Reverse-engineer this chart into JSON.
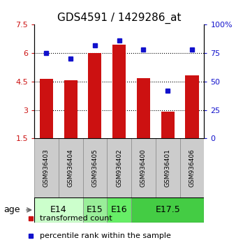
{
  "title": "GDS4591 / 1429286_at",
  "samples": [
    "GSM936403",
    "GSM936404",
    "GSM936405",
    "GSM936402",
    "GSM936400",
    "GSM936401",
    "GSM936406"
  ],
  "bar_values": [
    4.65,
    4.55,
    6.02,
    6.45,
    4.68,
    2.92,
    4.83
  ],
  "dot_values": [
    75,
    70,
    82,
    86,
    78,
    42,
    78
  ],
  "age_groups": [
    {
      "label": "E14",
      "start": 0,
      "end": 2,
      "color": "#ccffcc"
    },
    {
      "label": "E15",
      "start": 2,
      "end": 3,
      "color": "#99ee99"
    },
    {
      "label": "E16",
      "start": 3,
      "end": 4,
      "color": "#66ee66"
    },
    {
      "label": "E17.5",
      "start": 4,
      "end": 7,
      "color": "#44cc44"
    }
  ],
  "bar_color": "#cc1111",
  "dot_color": "#1111cc",
  "ylim_left": [
    1.5,
    7.5
  ],
  "ylim_right": [
    0,
    100
  ],
  "yticks_left": [
    1.5,
    3.0,
    4.5,
    6.0,
    7.5
  ],
  "yticks_right": [
    0,
    25,
    50,
    75,
    100
  ],
  "ytick_labels_left": [
    "1.5",
    "3",
    "4.5",
    "6",
    "7.5"
  ],
  "ytick_labels_right": [
    "0",
    "25",
    "50",
    "75",
    "100%"
  ],
  "bar_width": 0.55,
  "title_fontsize": 11,
  "tick_fontsize": 8,
  "legend_fontsize": 8,
  "age_label_fontsize": 9,
  "sample_fontsize": 6.5
}
